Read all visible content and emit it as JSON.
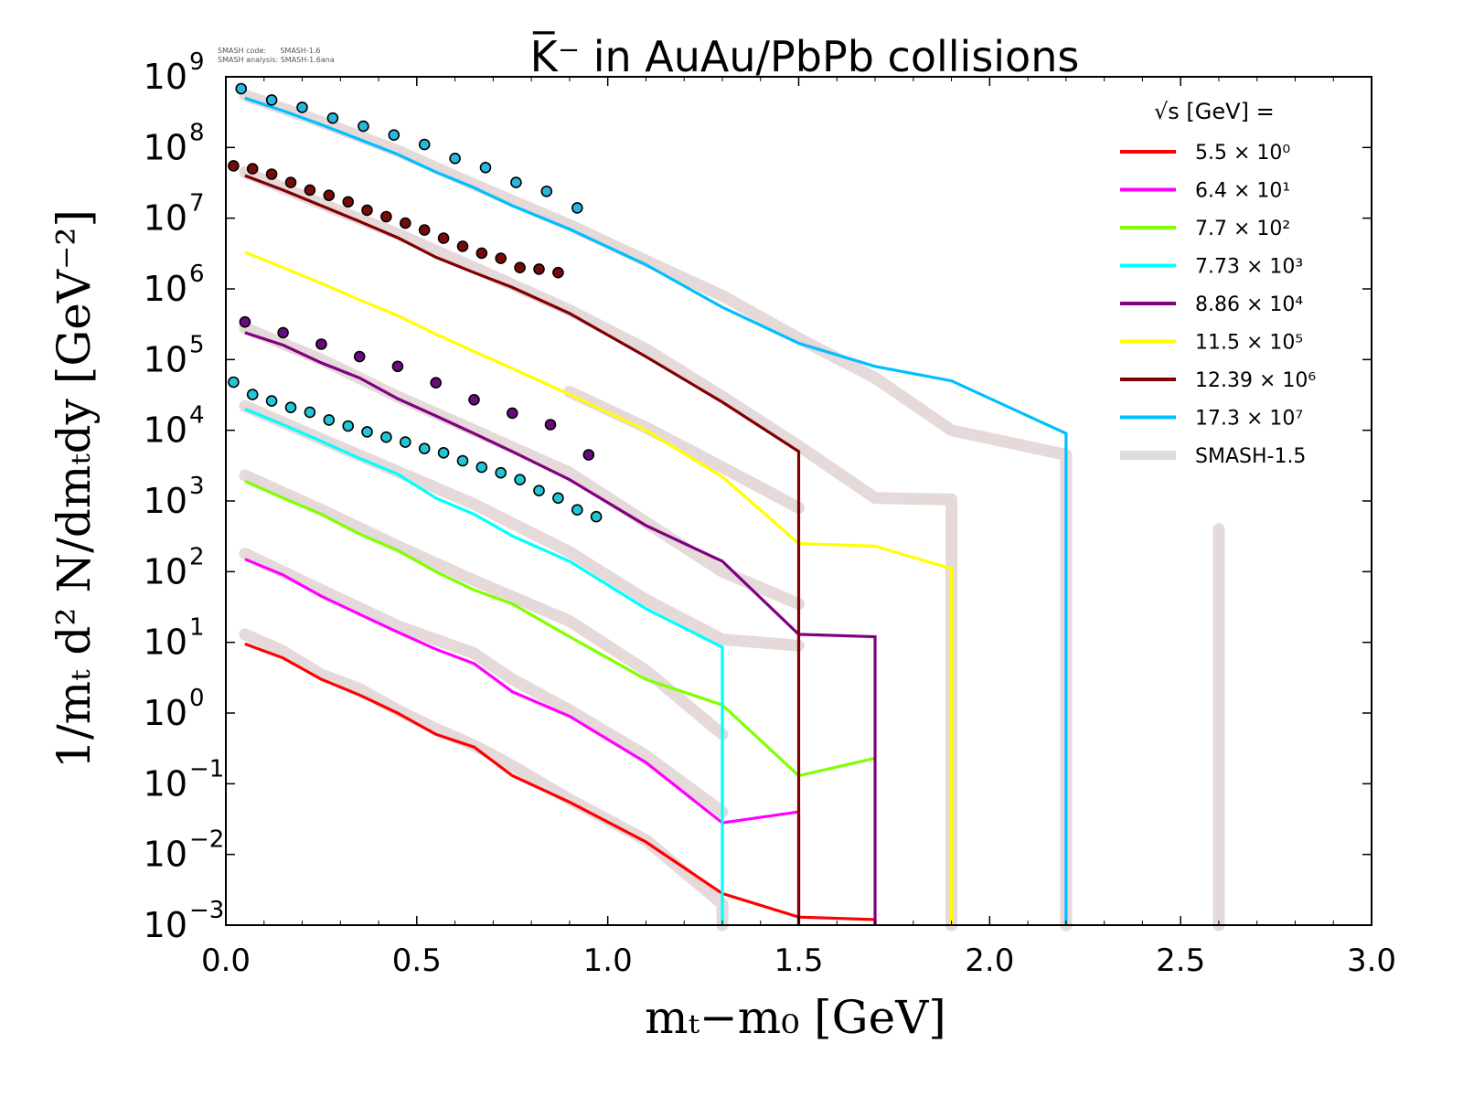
{
  "chart_data": {
    "type": "line",
    "title": "K̅⁻ in AuAu/PbPb collisions",
    "code_note_1": "SMASH code:      SMASH-1.6",
    "code_note_2": "SMASH analysis: SMASH-1.6ana",
    "xlabel": "mₜ−m₀ [GeV]",
    "ylabel": "1/mₜ d² N/dmₜdy [GeV⁻²]",
    "xlim": [
      0.0,
      3.0
    ],
    "ylim": [
      0.001,
      1000000000
    ],
    "yscale": "log",
    "grid": false,
    "legend_title": "√s  [GeV] =",
    "legend_position": "top-right",
    "x_ticks": [
      "0.0",
      "0.5",
      "1.0",
      "1.5",
      "2.0",
      "2.5",
      "3.0"
    ],
    "y_ticks": [
      {
        "mant": "10",
        "exp": "−3"
      },
      {
        "mant": "10",
        "exp": "−2"
      },
      {
        "mant": "10",
        "exp": "−1"
      },
      {
        "mant": "10",
        "exp": "0"
      },
      {
        "mant": "10",
        "exp": "1"
      },
      {
        "mant": "10",
        "exp": "2"
      },
      {
        "mant": "10",
        "exp": "3"
      },
      {
        "mant": "10",
        "exp": "4"
      },
      {
        "mant": "10",
        "exp": "5"
      },
      {
        "mant": "10",
        "exp": "6"
      },
      {
        "mant": "10",
        "exp": "7"
      },
      {
        "mant": "10",
        "exp": "8"
      },
      {
        "mant": "10",
        "exp": "9"
      }
    ],
    "series": [
      {
        "name": "5.5 × 10⁰",
        "color": "#ff0000",
        "x": [
          0.05,
          0.15,
          0.25,
          0.35,
          0.45,
          0.55,
          0.65,
          0.75,
          0.9,
          1.1,
          1.3,
          1.5,
          1.7,
          1.7
        ],
        "y": [
          9.5,
          6,
          3,
          1.8,
          1,
          0.5,
          0.33,
          0.13,
          0.055,
          0.015,
          0.0028,
          0.0013,
          0.0012,
          0.001
        ]
      },
      {
        "name": "6.4 × 10¹",
        "color": "#ff00ff",
        "x": [
          0.05,
          0.15,
          0.25,
          0.35,
          0.45,
          0.55,
          0.65,
          0.75,
          0.9,
          1.1,
          1.3,
          1.5,
          1.5
        ],
        "y": [
          150,
          90,
          45,
          25,
          14,
          8,
          5,
          2,
          0.9,
          0.2,
          0.028,
          0.04,
          0.001
        ]
      },
      {
        "name": "7.7 × 10²",
        "color": "#80ff00",
        "x": [
          0.05,
          0.15,
          0.25,
          0.35,
          0.45,
          0.55,
          0.65,
          0.75,
          0.9,
          1.1,
          1.3,
          1.5,
          1.7
        ],
        "y": [
          1900,
          1100,
          650,
          340,
          200,
          100,
          55,
          35,
          12,
          3,
          1.3,
          0.13,
          0.23
        ]
      },
      {
        "name": "7.73 × 10³",
        "color": "#00ffff",
        "x": [
          0.05,
          0.15,
          0.25,
          0.35,
          0.45,
          0.55,
          0.65,
          0.75,
          0.9,
          1.1,
          1.3,
          1.3
        ],
        "y": [
          20000,
          12000,
          7000,
          4000,
          2400,
          1100,
          650,
          320,
          140,
          30,
          8.5,
          0.001
        ]
      },
      {
        "name": "8.86 × 10⁴",
        "color": "#800080",
        "x": [
          0.05,
          0.15,
          0.25,
          0.35,
          0.45,
          0.55,
          0.65,
          0.75,
          0.9,
          1.1,
          1.3,
          1.5,
          1.7,
          1.7
        ],
        "y": [
          240000,
          160000,
          90000,
          55000,
          28000,
          16000,
          9000,
          5000,
          2000,
          450,
          140,
          13,
          12,
          0.001
        ]
      },
      {
        "name": "11.5 × 10⁵",
        "color": "#ffff00",
        "x": [
          0.05,
          0.15,
          0.25,
          0.35,
          0.45,
          0.55,
          0.65,
          0.75,
          0.9,
          1.1,
          1.3,
          1.5,
          1.7,
          1.9,
          1.9
        ],
        "y": [
          3300000,
          2000000,
          1200000,
          700000,
          420000,
          230000,
          130000,
          75000,
          32000,
          10000,
          2200,
          250,
          230,
          110,
          0.001
        ]
      },
      {
        "name": "12.39 × 10⁶",
        "color": "#800000",
        "x": [
          0.05,
          0.15,
          0.25,
          0.35,
          0.45,
          0.55,
          0.65,
          0.75,
          0.9,
          1.1,
          1.3,
          1.5,
          1.5
        ],
        "y": [
          40000000,
          25000000,
          15000000,
          9000000,
          5300000,
          2800000,
          1700000,
          1050000,
          450000,
          110000,
          25000,
          5000,
          0.001
        ]
      },
      {
        "name": "17.3 × 10⁷",
        "color": "#00bfff",
        "x": [
          0.05,
          0.15,
          0.25,
          0.35,
          0.45,
          0.55,
          0.65,
          0.75,
          0.9,
          1.1,
          1.3,
          1.5,
          1.7,
          1.9,
          2.2,
          2.2
        ],
        "y": [
          500000000,
          330000000,
          210000000,
          130000000,
          80000000,
          45000000,
          27000000,
          15000000,
          7000000,
          2200000,
          550000,
          170000,
          80000,
          50000,
          9000,
          0.001
        ]
      }
    ],
    "reference": {
      "name": "SMASH-1.5",
      "color": "#ddcccc",
      "segments": [
        {
          "x": [
            0.05,
            0.15,
            0.25,
            0.35,
            0.45,
            0.55,
            0.65,
            0.75,
            0.9,
            1.1,
            1.3,
            1.3
          ],
          "y": [
            13,
            7.5,
            3.5,
            2.2,
            1.1,
            0.6,
            0.35,
            0.18,
            0.06,
            0.016,
            0.002,
            0.001
          ]
        },
        {
          "x": [
            0.05,
            0.25,
            0.45,
            0.65,
            0.75,
            0.9,
            1.1,
            1.3
          ],
          "y": [
            180,
            55,
            17,
            7,
            3,
            1.1,
            0.25,
            0.04
          ]
        },
        {
          "x": [
            0.05,
            0.25,
            0.45,
            0.65,
            0.9,
            1.1,
            1.3
          ],
          "y": [
            2300,
            750,
            230,
            75,
            20,
            4,
            0.5
          ]
        },
        {
          "x": [
            0.05,
            0.25,
            0.45,
            0.65,
            0.9,
            1.1,
            1.3,
            1.5
          ],
          "y": [
            22000,
            7500,
            2600,
            900,
            190,
            40,
            11,
            9
          ]
        },
        {
          "x": [
            0.05,
            0.25,
            0.45,
            0.65,
            0.9,
            1.1,
            1.3,
            1.5
          ],
          "y": [
            280000,
            100000,
            30000,
            10000,
            2500,
            500,
            100,
            35
          ]
        },
        {
          "x": [
            0.9,
            1.1,
            1.3,
            1.5
          ],
          "y": [
            35000,
            11000,
            3000,
            800
          ]
        },
        {
          "x": [
            0.05,
            0.25,
            0.45,
            0.65,
            0.9,
            1.1,
            1.3,
            1.5,
            1.7,
            1.9,
            1.9
          ],
          "y": [
            45000000,
            16000000,
            6000000,
            2000000,
            500000,
            140000,
            30000,
            6000,
            1100,
            1050,
            0.001
          ]
        },
        {
          "x": [
            0.05,
            0.25,
            0.45,
            0.65,
            0.9,
            1.1,
            1.3,
            1.5,
            1.7,
            1.9,
            2.2,
            2.2
          ],
          "y": [
            550000000,
            230000000,
            90000000,
            30000000,
            8000000,
            2500000,
            800000,
            200000,
            55000,
            10000,
            4500,
            0.001
          ]
        },
        {
          "x": [
            2.6,
            2.6
          ],
          "y": [
            400,
            0.001
          ]
        }
      ]
    },
    "experimental_points": [
      {
        "color": "#29b6e0",
        "x": [
          0.04,
          0.12,
          0.2,
          0.28,
          0.36,
          0.44,
          0.52,
          0.6,
          0.68,
          0.76,
          0.84,
          0.92
        ],
        "y": [
          680000000,
          470000000,
          370000000,
          260000000,
          200000000,
          150000000,
          110000000,
          70000000,
          52000000,
          32000000,
          24000000,
          14000000
        ]
      },
      {
        "color": "#7a0a0a",
        "x": [
          0.02,
          0.07,
          0.12,
          0.17,
          0.22,
          0.27,
          0.32,
          0.37,
          0.42,
          0.47,
          0.52,
          0.57,
          0.62,
          0.67,
          0.72,
          0.77,
          0.82,
          0.87
        ],
        "y": [
          55000000,
          50000000,
          42000000,
          32000000,
          25000000,
          21000000,
          17000000,
          13000000,
          10500000,
          8500000,
          6800000,
          5200000,
          4000000,
          3200000,
          2700000,
          2000000,
          1900000,
          1700000
        ]
      },
      {
        "color": "#6a0a80",
        "x": [
          0.05,
          0.15,
          0.25,
          0.35,
          0.45,
          0.55,
          0.65,
          0.75,
          0.85,
          0.95
        ],
        "y": [
          340000,
          240000,
          165000,
          110000,
          80000,
          47000,
          27000,
          17500,
          12000,
          4500
        ]
      },
      {
        "color": "#22c6d8",
        "x": [
          0.02,
          0.07,
          0.12,
          0.17,
          0.22,
          0.27,
          0.32,
          0.37,
          0.42,
          0.47,
          0.52,
          0.57,
          0.62,
          0.67,
          0.72,
          0.77,
          0.82,
          0.87,
          0.92,
          0.97
        ],
        "y": [
          48000,
          32000,
          26000,
          21000,
          18000,
          14000,
          11500,
          9500,
          8000,
          6800,
          5500,
          4800,
          3700,
          3000,
          2500,
          2000,
          1400,
          1100,
          750,
          600
        ]
      }
    ]
  }
}
